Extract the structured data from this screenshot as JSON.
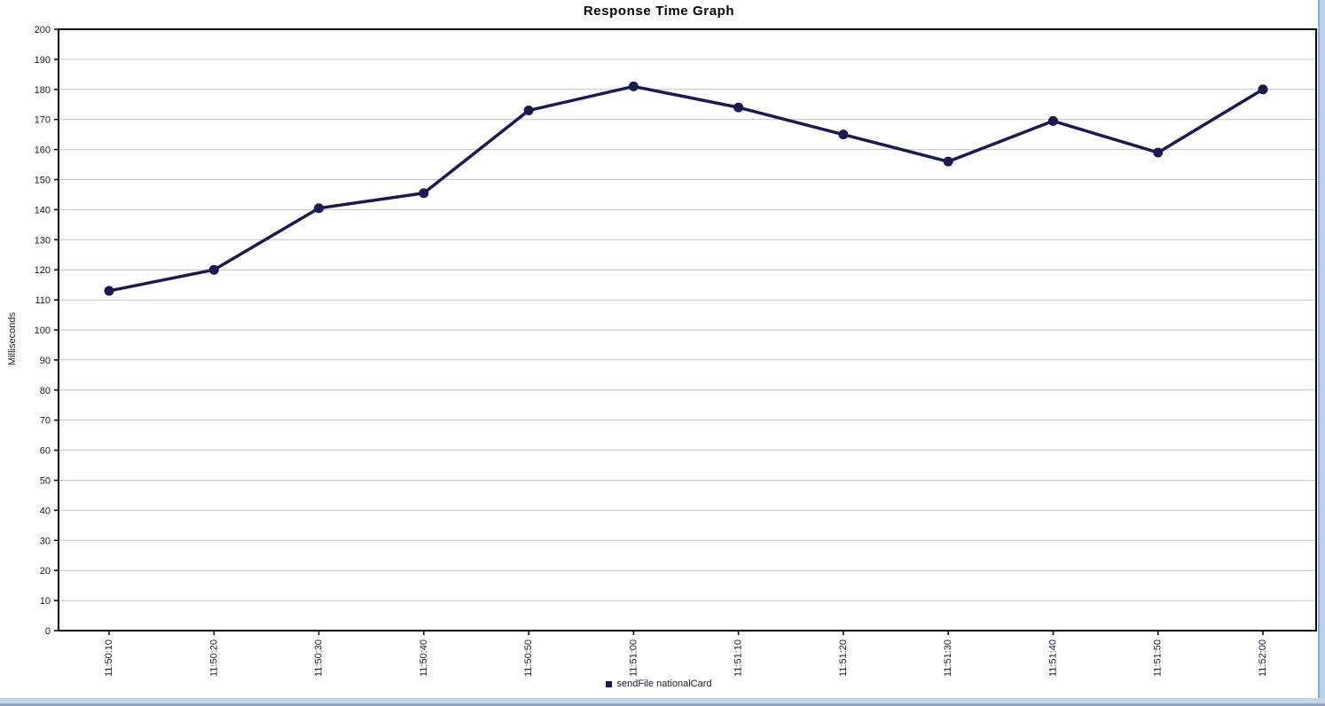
{
  "chart_data": {
    "type": "line",
    "title": "Response Time Graph",
    "xlabel": "",
    "ylabel": "Milliseconds",
    "categories": [
      "11:50:10",
      "11:50:20",
      "11:50:30",
      "11:50:40",
      "11:50:50",
      "11:51:00",
      "11:51:10",
      "11:51:20",
      "11:51:30",
      "11:51:40",
      "11:51:50",
      "11:52:00"
    ],
    "series": [
      {
        "name": "sendFile nationalCard",
        "values": [
          113,
          120,
          140.5,
          145.5,
          173,
          181,
          174,
          165,
          156,
          169.5,
          159,
          180
        ],
        "color": "#1b1b4f"
      }
    ],
    "ylim": [
      0,
      200
    ],
    "ytick_step": 10,
    "grid": "horizontal",
    "gridline_color": "#c4c4c4",
    "axis_color": "#000000",
    "tick_label_color": "#1a1a2e",
    "legend_position": "bottom-center"
  },
  "window": {
    "border_color_outer": "#b7d0e8",
    "border_color_inner": "#8fa9c7"
  }
}
